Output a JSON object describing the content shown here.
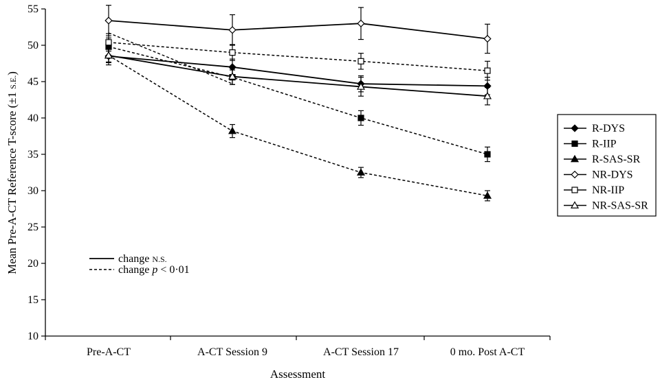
{
  "chart_data": {
    "type": "line",
    "xlabel": "Assessment",
    "ylabel": "Mean Pre-A-CT Reference T-score (±1 S.E.)",
    "ylabel_main": "Mean Pre-A-CT Reference T-score (±1 ",
    "ylabel_small": "S.E.",
    "ylabel_end": ")",
    "categories": [
      "Pre-A-CT",
      "A-CT Session 9",
      "A-CT Session 17",
      "0 mo. Post A-CT"
    ],
    "ylim": [
      10,
      55
    ],
    "yticks": [
      "10",
      "15",
      "20",
      "25",
      "30",
      "35",
      "40",
      "45",
      "50",
      "55"
    ],
    "grid": false,
    "legend_position": "right",
    "series": [
      {
        "name": "R-DYS",
        "marker": "diamond-filled",
        "line": "solid",
        "values": [
          48.5,
          47.0,
          44.7,
          44.4
        ],
        "errors": [
          1.2,
          1.1,
          1.1,
          1.2
        ]
      },
      {
        "name": "R-IIP",
        "marker": "square-filled",
        "line": "dashed",
        "values": [
          49.8,
          45.6,
          40.0,
          35.0
        ],
        "errors": [
          1.2,
          1.0,
          1.0,
          1.0
        ]
      },
      {
        "name": "R-SAS-SR",
        "marker": "triangle-filled",
        "line": "dashed",
        "values": [
          48.6,
          38.2,
          32.5,
          29.3
        ],
        "errors": [
          0.9,
          0.9,
          0.7,
          0.7
        ]
      },
      {
        "name": "NR-DYS",
        "marker": "diamond-open",
        "line": "solid",
        "values": [
          53.4,
          52.1,
          53.0,
          50.9
        ],
        "errors": [
          2.1,
          2.1,
          2.2,
          2.0
        ]
      },
      {
        "name": "NR-IIP",
        "marker": "square-open",
        "line": "dashed",
        "values": [
          50.4,
          49.0,
          47.8,
          46.5
        ],
        "errors": [
          1.2,
          1.1,
          1.1,
          1.3
        ]
      },
      {
        "name": "NR-SAS-SR",
        "marker": "triangle-open",
        "line": "solid",
        "values": [
          48.6,
          45.7,
          44.3,
          43.0
        ],
        "errors": [
          1.0,
          1.1,
          1.3,
          1.2
        ]
      }
    ],
    "hidden_line_segments": [
      {
        "series": "R-SAS-SR",
        "line": "dashed",
        "values": [
          51.7,
          44.7
        ]
      }
    ],
    "annotations": {
      "solid_label": "change ",
      "solid_small": "N.S.",
      "dashed_label": "change ",
      "dashed_p": "p",
      "dashed_rest": " < 0·01"
    }
  }
}
